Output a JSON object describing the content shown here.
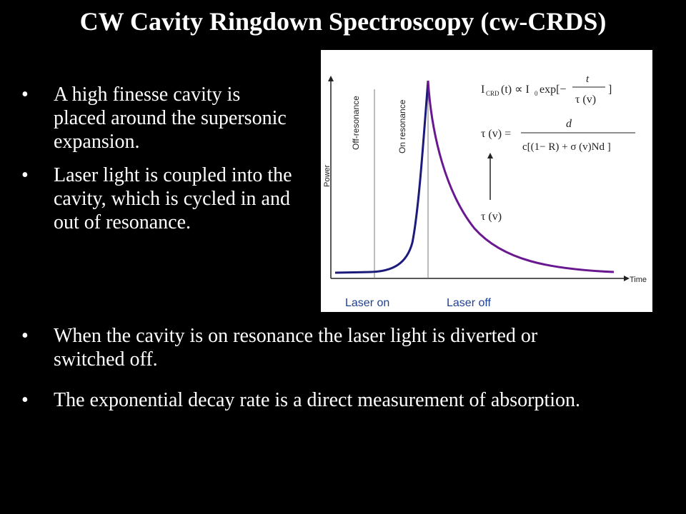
{
  "title": "CW Cavity Ringdown Spectroscopy (cw-CRDS)",
  "bullets_top": [
    "A high finesse cavity is placed around the supersonic expansion.",
    "Laser light is coupled into the cavity, which is cycled in and out of resonance."
  ],
  "bullets_bottom": [
    "When the cavity is on resonance the laser light is diverted or switched off.",
    "The exponential decay rate is a direct measurement of absorption."
  ],
  "figure": {
    "y_axis_label": "Power",
    "x_axis_label": "Time",
    "off_resonance_label": "Off-resonance",
    "on_resonance_label": "On resonance",
    "laser_on_label": "Laser on",
    "laser_off_label": "Laser off",
    "tau_label": "τ (v)",
    "rise_color": "#1c1a7a",
    "decay_color": "#6a1890",
    "laser_label_color": "#1f3f8f"
  }
}
